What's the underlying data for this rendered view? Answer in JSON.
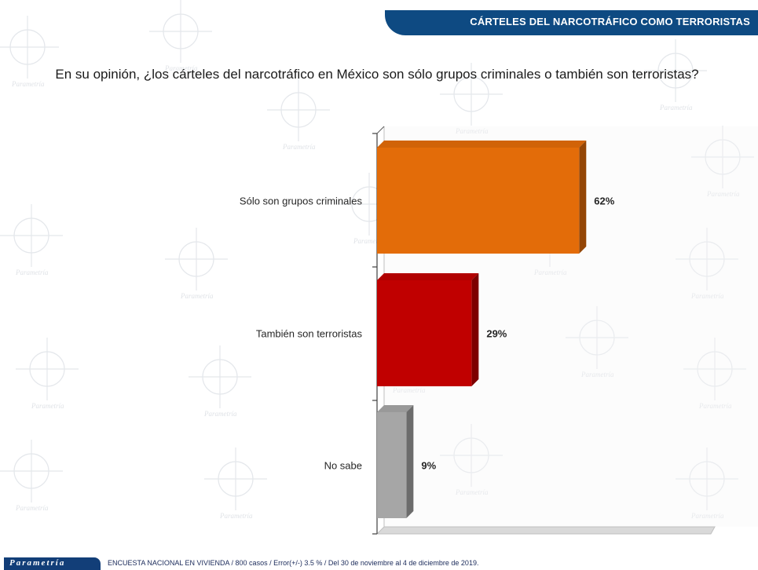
{
  "header": {
    "title": "CÁRTELES  DEL NARCOTRÁFICO  COMO TERRORISTAS"
  },
  "question": "En su opinión, ¿los cárteles del narcotráfico en México son sólo grupos criminales o también son terroristas?",
  "chart_data": {
    "type": "bar",
    "orientation": "horizontal",
    "categories": [
      "Sólo son grupos criminales",
      "También son terroristas",
      "No sabe"
    ],
    "values": [
      62,
      29,
      9
    ],
    "data_labels": [
      "62%",
      "29%",
      "9%"
    ],
    "bar_colors": [
      "#e36c09",
      "#c00000",
      "#a6a6a6"
    ],
    "xlim": [
      0,
      100
    ],
    "grid": false,
    "legend": "none"
  },
  "footer": {
    "brand": "Parametría",
    "note": "ENCUESTA  NACIONAL EN VIVIENDA  / 800 casos / Error(+/-) 3.5 % / Del 30 de noviembre al 4 de diciembre de 2019."
  },
  "watermark": {
    "word": "Parametría"
  },
  "colors": {
    "banner": "#0e4a82",
    "footer": "#123e78"
  }
}
